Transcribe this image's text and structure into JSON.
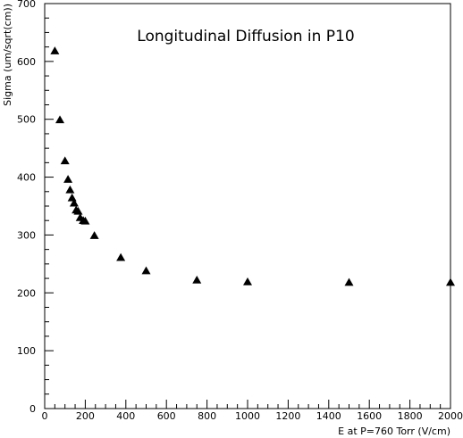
{
  "chart_data": {
    "type": "scatter",
    "title": "Longitudinal Diffusion in P10",
    "xlabel": "E at P=760 Torr (V/cm)",
    "ylabel": "Sigma (um/sqrt(cm))",
    "xlim": [
      0,
      2000
    ],
    "ylim": [
      0,
      700
    ],
    "xticks": [
      0,
      200,
      400,
      600,
      800,
      1000,
      1200,
      1400,
      1600,
      1800,
      2000
    ],
    "yticks": [
      0,
      100,
      200,
      300,
      400,
      500,
      600,
      700
    ],
    "grid": false,
    "legend": "none",
    "marker": "triangle",
    "marker_color": "#000000",
    "series": [
      {
        "points": [
          [
            50,
            618
          ],
          [
            75,
            499
          ],
          [
            100,
            428
          ],
          [
            115,
            396
          ],
          [
            125,
            378
          ],
          [
            135,
            364
          ],
          [
            145,
            355
          ],
          [
            155,
            343
          ],
          [
            165,
            341
          ],
          [
            175,
            330
          ],
          [
            190,
            325
          ],
          [
            200,
            324
          ],
          [
            245,
            299
          ],
          [
            375,
            261
          ],
          [
            500,
            238
          ],
          [
            750,
            222
          ],
          [
            1000,
            219
          ],
          [
            1500,
            218
          ],
          [
            2000,
            218
          ]
        ]
      }
    ]
  }
}
